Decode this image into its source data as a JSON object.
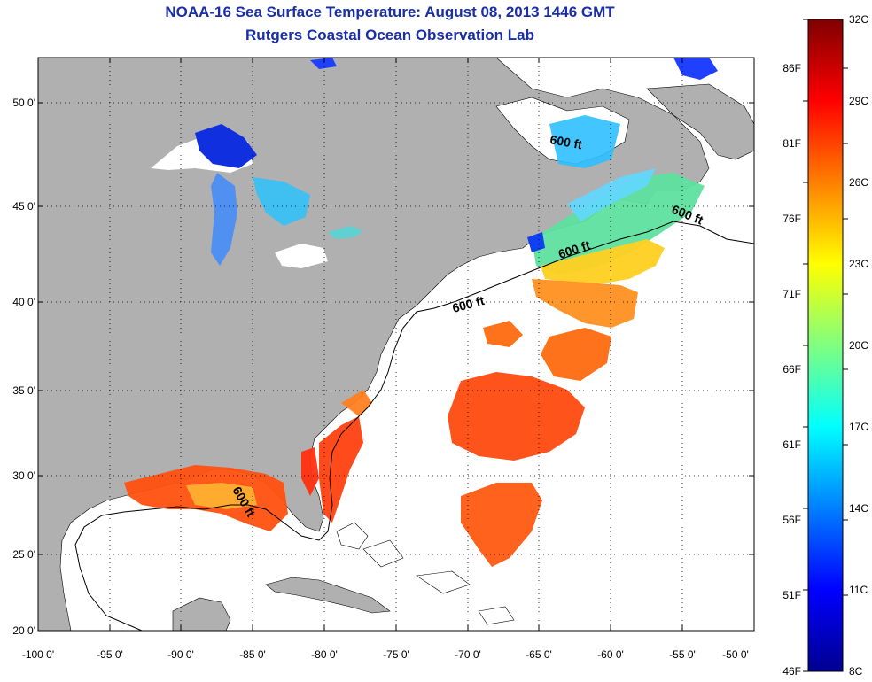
{
  "header": {
    "title": "NOAA-16 Sea Surface Temperature:  August 08, 2013 1446 GMT",
    "subtitle": "Rutgers Coastal Ocean Observation Lab"
  },
  "map": {
    "lat_ticks": [
      "50 0'",
      "45 0'",
      "40 0'",
      "35 0'",
      "30 0'",
      "25 0'",
      "20 0'"
    ],
    "lon_ticks": [
      "-100 0'",
      "-95 0'",
      "-90 0'",
      "-85 0'",
      "-80 0'",
      "-75 0'",
      "-70 0'",
      "-65 0'",
      "-60 0'",
      "-55 0'",
      "-50 0'"
    ],
    "contour_labels": [
      "600 ft",
      "600 ft",
      "600 ft",
      "600 ft",
      "600 ft"
    ],
    "colors": {
      "land": "#b0b0b0",
      "ocean": "#ffffff"
    }
  },
  "colorbar": {
    "celsius": [
      "32C",
      "29C",
      "26C",
      "23C",
      "20C",
      "17C",
      "14C",
      "11C",
      "8C"
    ],
    "fahrenheit": [
      "86F",
      "81F",
      "76F",
      "71F",
      "66F",
      "61F",
      "56F",
      "51F",
      "46F"
    ]
  }
}
